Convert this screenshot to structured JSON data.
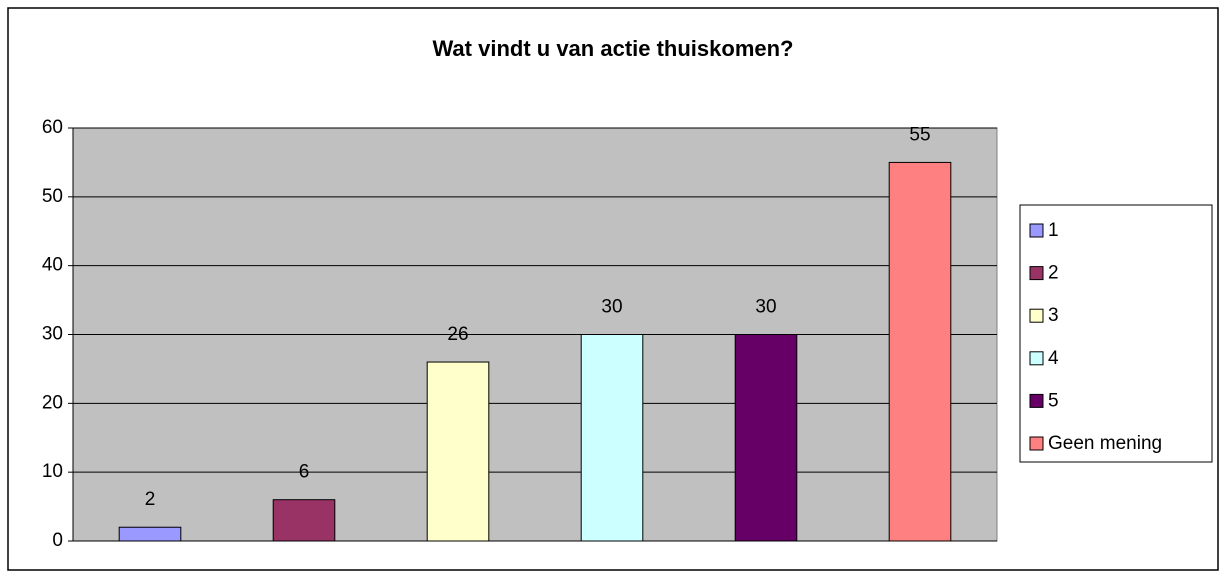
{
  "chart_data": {
    "type": "bar",
    "title": "Wat vindt u van actie thuiskomen?",
    "series": [
      {
        "name": "1",
        "color": "#9999ff",
        "values": [
          2
        ]
      },
      {
        "name": "2",
        "color": "#993366",
        "values": [
          6
        ]
      },
      {
        "name": "3",
        "color": "#ffffcc",
        "values": [
          26
        ]
      },
      {
        "name": "4",
        "color": "#ccffff",
        "values": [
          30
        ]
      },
      {
        "name": "5",
        "color": "#660066",
        "values": [
          30
        ]
      },
      {
        "name": "Geen mening",
        "color": "#ff8080",
        "values": [
          55
        ]
      }
    ],
    "ylim": [
      0,
      60
    ],
    "yticks": [
      0,
      10,
      20,
      30,
      40,
      50,
      60
    ],
    "grid": true,
    "legend": "right",
    "plot_background": "#c0c0c0"
  }
}
